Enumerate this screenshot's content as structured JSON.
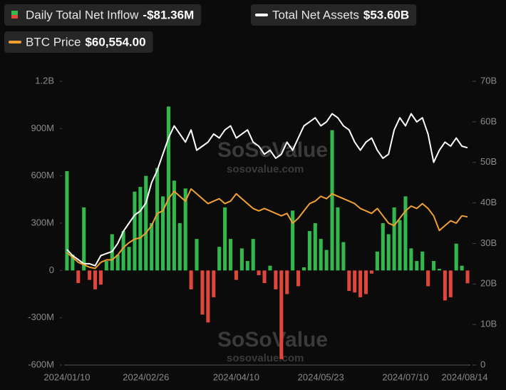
{
  "chart_data": {
    "type": "bar-line",
    "watermark": {
      "brand": "SoSoValue",
      "site": "sosovalue.com"
    },
    "categories": [
      "2024/01/10",
      null,
      null,
      null,
      null,
      null,
      null,
      null,
      null,
      null,
      null,
      null,
      null,
      null,
      "2024/02/26",
      null,
      null,
      null,
      null,
      null,
      null,
      null,
      null,
      null,
      null,
      null,
      null,
      null,
      null,
      null,
      "2024/04/10",
      null,
      null,
      null,
      null,
      null,
      null,
      null,
      null,
      null,
      null,
      null,
      null,
      null,
      null,
      "2024/05/23",
      null,
      null,
      null,
      null,
      null,
      null,
      null,
      null,
      null,
      null,
      null,
      null,
      null,
      null,
      "2024/07/10",
      null,
      null,
      null,
      null,
      null,
      null,
      null,
      null,
      null,
      null,
      "2024/08/14"
    ],
    "series": [
      {
        "name": "Daily Total Net Inflow",
        "latest": "-$81.36M",
        "color": "#33b84e",
        "negative_color": "#e0463b",
        "axis": "y",
        "values": [
          630,
          100,
          -80,
          400,
          -60,
          -120,
          -90,
          60,
          230,
          100,
          250,
          150,
          500,
          530,
          600,
          300,
          650,
          470,
          1040,
          570,
          300,
          520,
          -120,
          200,
          -280,
          -330,
          -170,
          150,
          400,
          200,
          -60,
          140,
          60,
          200,
          -30,
          -80,
          30,
          -120,
          -563,
          -150,
          380,
          -100,
          20,
          250,
          300,
          200,
          130,
          890,
          400,
          180,
          -130,
          -140,
          -170,
          -150,
          -20,
          120,
          300,
          230,
          400,
          320,
          470,
          140,
          60,
          120,
          -100,
          60,
          10,
          -190,
          -170,
          170,
          30,
          -81.36
        ]
      },
      {
        "name": "Total Net Assets",
        "latest": "$53.60B",
        "color": "#ffffff",
        "axis": "y2",
        "values": [
          28.5,
          27,
          26,
          25,
          25,
          24.5,
          27,
          27.5,
          28,
          30,
          33,
          35,
          37,
          38,
          40,
          45,
          48,
          52,
          56,
          59,
          57,
          55,
          58,
          53,
          54,
          55,
          57,
          56,
          58,
          59,
          56,
          57,
          58,
          55,
          54,
          52,
          53,
          51,
          52,
          55,
          53,
          56,
          59,
          60,
          61,
          59,
          60,
          62,
          61,
          59,
          58,
          55,
          53,
          55,
          56,
          53,
          51,
          52,
          58,
          61,
          59,
          62,
          60,
          61,
          57,
          50,
          53,
          55,
          54,
          56,
          54,
          53.6
        ]
      },
      {
        "name": "BTC Price",
        "latest": "$60,554.00",
        "color": "#f0a030",
        "axis": "y3",
        "values": [
          46000,
          44000,
          42000,
          41000,
          40000,
          39500,
          42000,
          43000,
          43000,
          45000,
          48000,
          50000,
          51500,
          52000,
          54000,
          57000,
          62000,
          63000,
          68000,
          71000,
          69000,
          67000,
          72000,
          70000,
          68000,
          66000,
          67000,
          68000,
          66000,
          67000,
          70000,
          68000,
          66000,
          64000,
          63000,
          64000,
          63000,
          62000,
          61000,
          62000,
          58000,
          60000,
          63000,
          66000,
          67000,
          69000,
          68000,
          70000,
          69000,
          68000,
          67000,
          66000,
          64000,
          63000,
          62000,
          64000,
          61000,
          58000,
          57000,
          60000,
          63000,
          65000,
          64000,
          66000,
          64000,
          61000,
          55000,
          57000,
          59000,
          58000,
          61000,
          60554
        ]
      }
    ],
    "ylim": [
      -600,
      1200
    ],
    "yticks": [
      {
        "value": -600,
        "label": "-600M"
      },
      {
        "value": -300,
        "label": "-300M"
      },
      0,
      {
        "value": 300,
        "label": "300M"
      },
      {
        "value": 600,
        "label": "600M"
      },
      {
        "value": 900,
        "label": "900M"
      },
      {
        "value": 1200,
        "label": "1.2B"
      }
    ],
    "y2lim": [
      0,
      70
    ],
    "y2ticks": [
      0,
      {
        "value": 10,
        "label": "10B"
      },
      {
        "value": 20,
        "label": "20B"
      },
      {
        "value": 30,
        "label": "30B"
      },
      {
        "value": 40,
        "label": "40B"
      },
      {
        "value": 50,
        "label": "50B"
      },
      {
        "value": 60,
        "label": "60B"
      },
      {
        "value": 70,
        "label": "70B"
      }
    ],
    "y3lim": [
      0,
      116000
    ],
    "grid": false
  }
}
